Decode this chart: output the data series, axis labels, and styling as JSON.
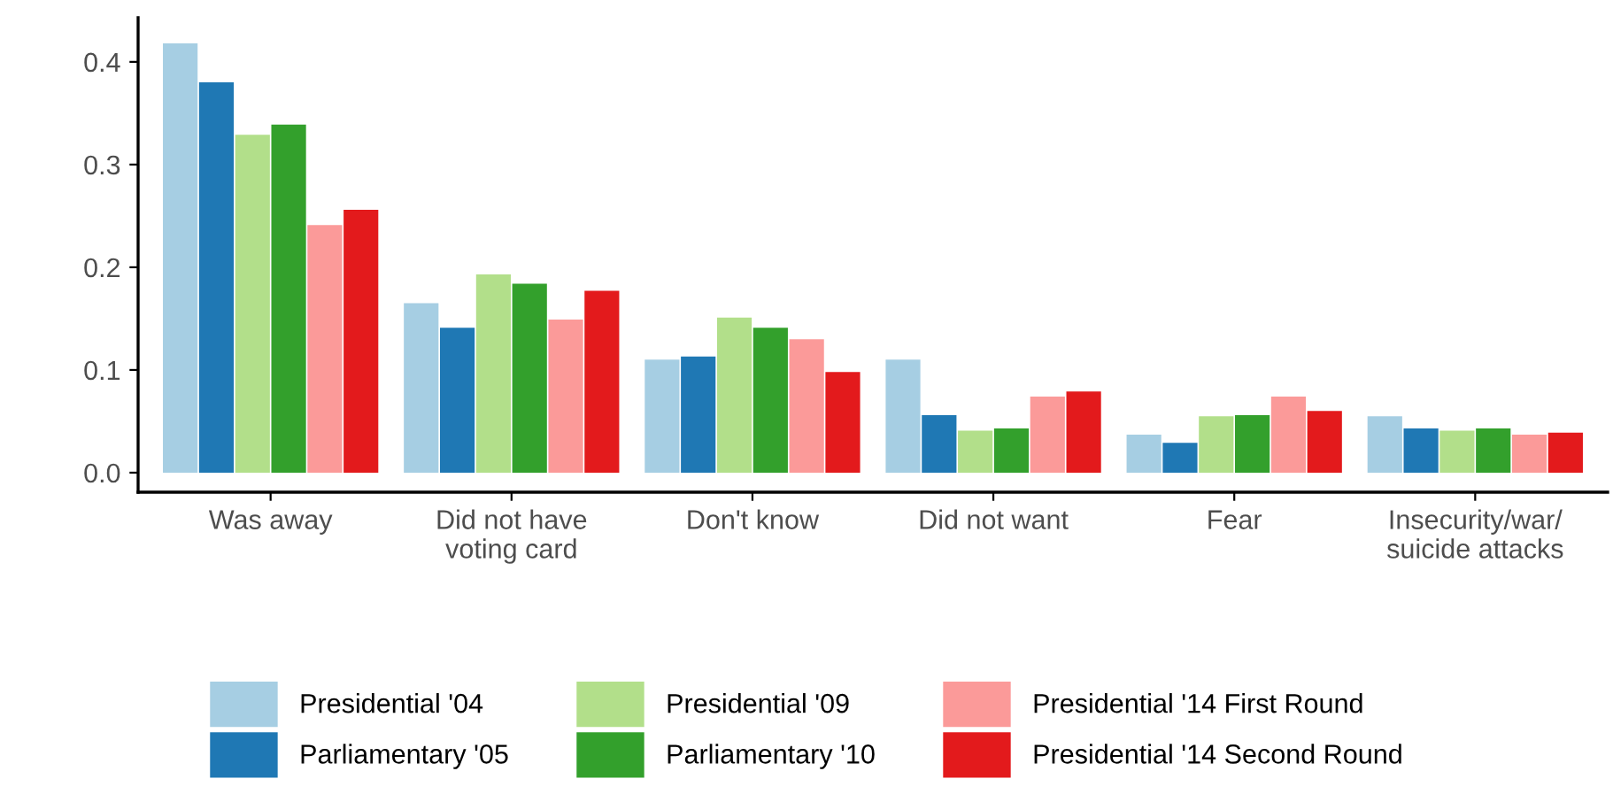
{
  "chart_data": {
    "type": "bar",
    "categories": [
      "Was away",
      "Did not have\nvoting card",
      "Don't know",
      "Did not want",
      "Fear",
      "Insecurity/war/\nsuicide attacks"
    ],
    "series": [
      {
        "name": "Presidential '04",
        "color": "#a6cee3",
        "values": [
          0.418,
          0.165,
          0.11,
          0.11,
          0.037,
          0.055
        ]
      },
      {
        "name": "Parliamentary '05",
        "color": "#1f78b4",
        "values": [
          0.38,
          0.141,
          0.113,
          0.056,
          0.029,
          0.043
        ]
      },
      {
        "name": "Presidential '09",
        "color": "#b2df8a",
        "values": [
          0.329,
          0.193,
          0.151,
          0.041,
          0.055,
          0.041
        ]
      },
      {
        "name": "Parliamentary '10",
        "color": "#33a02c",
        "values": [
          0.339,
          0.184,
          0.141,
          0.043,
          0.056,
          0.043
        ]
      },
      {
        "name": "Presidential '14 First Round",
        "color": "#fb9a99",
        "values": [
          0.241,
          0.149,
          0.13,
          0.074,
          0.074,
          0.037
        ]
      },
      {
        "name": "Presidential '14 Second Round",
        "color": "#e31a1c",
        "values": [
          0.256,
          0.177,
          0.098,
          0.079,
          0.06,
          0.039
        ]
      }
    ],
    "ylim": [
      -0.019,
      0.443
    ],
    "yticks": [
      {
        "value": 0,
        "label": "0.0"
      },
      0.1,
      0.2,
      0.3,
      0.4
    ],
    "grid": false,
    "legend": "bottom"
  }
}
